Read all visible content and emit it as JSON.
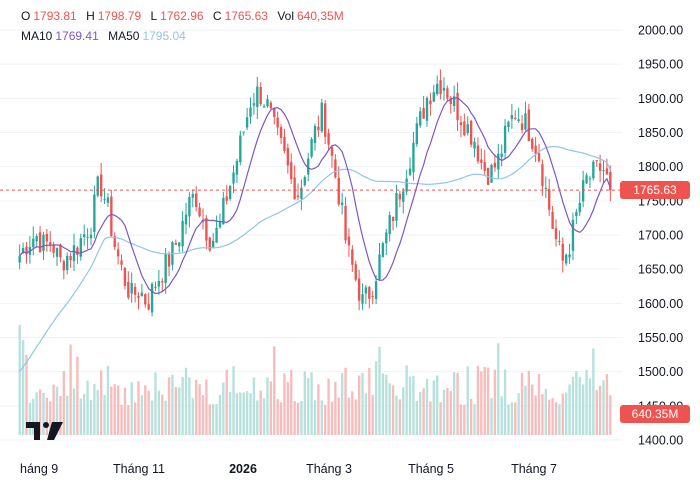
{
  "legend": {
    "o_label": "O",
    "o_value": "1793.81",
    "h_label": "H",
    "h_value": "1798.79",
    "l_label": "L",
    "l_value": "1762.96",
    "c_label": "C",
    "c_value": "1765.63",
    "vol_label": "Vol",
    "vol_value": "640,35M",
    "ma10_label": "MA10",
    "ma10_value": "1769.41",
    "ma50_label": "MA50",
    "ma50_value": "1795.04"
  },
  "price_tag": "1765.63",
  "volume_tag": "640.35M",
  "colors": {
    "up": "#26a69a",
    "down": "#ef5350",
    "ma10": "#7e57c2",
    "ma50": "#8fc6ec",
    "grid": "#f0f3fa",
    "axis_text": "#131722"
  },
  "chart_data": {
    "type": "candlestick",
    "ylim": [
      1400,
      2000
    ],
    "y_ticks": [
      "2000.00",
      "1950.00",
      "1900.00",
      "1850.00",
      "1800.00",
      "1750.00",
      "1700.00",
      "1650.00",
      "1600.00",
      "1550.00",
      "1500.00",
      "1450.00",
      "1400.00"
    ],
    "x_ticks": [
      {
        "label": "háng 9",
        "bold": false
      },
      {
        "label": "Tháng 11",
        "bold": false
      },
      {
        "label": "2026",
        "bold": true
      },
      {
        "label": "Tháng 3",
        "bold": false
      },
      {
        "label": "Tháng 5",
        "bold": false
      },
      {
        "label": "Tháng 7",
        "bold": false
      }
    ],
    "close_anchors": [
      1670,
      1690,
      1700,
      1685,
      1690,
      1660,
      1670,
      1680,
      1700,
      1720,
      1780,
      1740,
      1680,
      1640,
      1610,
      1620,
      1600,
      1630,
      1650,
      1670,
      1700,
      1740,
      1760,
      1720,
      1690,
      1710,
      1760,
      1800,
      1850,
      1900,
      1910,
      1890,
      1850,
      1820,
      1780,
      1760,
      1810,
      1850,
      1880,
      1820,
      1760,
      1680,
      1640,
      1600,
      1620,
      1660,
      1700,
      1740,
      1780,
      1820,
      1860,
      1900,
      1920,
      1925,
      1900,
      1880,
      1860,
      1840,
      1800,
      1790,
      1810,
      1850,
      1880,
      1870,
      1850,
      1820,
      1760,
      1700,
      1660,
      1690,
      1740,
      1780,
      1790,
      1800,
      1766
    ],
    "candle_count": 175,
    "last_close": 1765.63,
    "ma10_last": 1769.41,
    "ma50_last": 1795.04,
    "last_volume_millions": 640.35
  }
}
